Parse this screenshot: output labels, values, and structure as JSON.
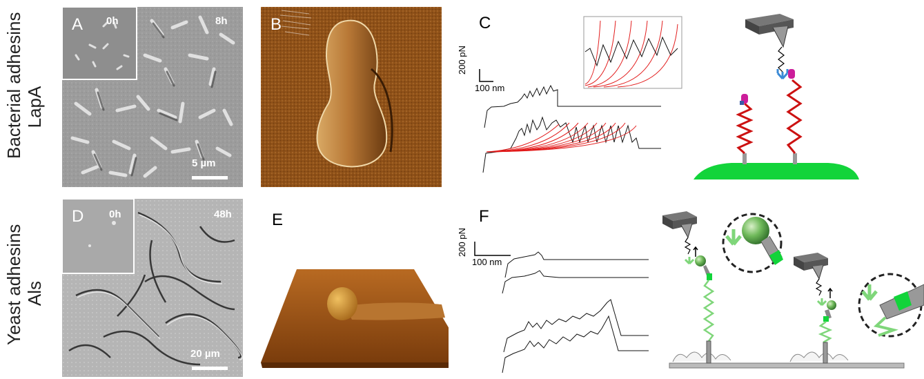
{
  "rows": [
    {
      "title": "Bacterial adhesins",
      "protein": "LapA"
    },
    {
      "title": "Yeast adhesins",
      "protein": "Als"
    }
  ],
  "panels": {
    "A": {
      "label": "A",
      "inset_time": "0h",
      "main_time": "8h",
      "scale": "5 µm"
    },
    "B": {
      "label": "B"
    },
    "C": {
      "label": "C",
      "force_scale": "200 pN",
      "distance_scale": "100 nm"
    },
    "D": {
      "label": "D",
      "inset_time": "0h",
      "main_time": "48h",
      "scale": "20 µm"
    },
    "E": {
      "label": "E"
    },
    "F": {
      "label": "F",
      "force_scale": "200 pN",
      "distance_scale": "100 nm"
    }
  },
  "colors": {
    "fit_curve": "#e21b1b",
    "trace": "#111111",
    "surface_green": "#12d43a",
    "adhesin_red": "#cc1111",
    "tip_magenta": "#cc1d9a",
    "antibody_blue": "#3a8ad6",
    "als_green": "#7fd67a",
    "afm_brown": "#9a5a1c"
  }
}
